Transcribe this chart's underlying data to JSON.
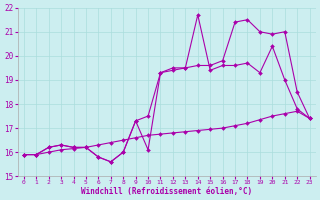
{
  "xlabel": "Windchill (Refroidissement éolien,°C)",
  "bg_color": "#cceef0",
  "line_color": "#aa00aa",
  "grid_color": "#aadddd",
  "xlim": [
    -0.5,
    23.5
  ],
  "ylim": [
    15,
    22
  ],
  "yticks": [
    15,
    16,
    17,
    18,
    19,
    20,
    21,
    22
  ],
  "xticks": [
    0,
    1,
    2,
    3,
    4,
    5,
    6,
    7,
    8,
    9,
    10,
    11,
    12,
    13,
    14,
    15,
    16,
    17,
    18,
    19,
    20,
    21,
    22,
    23
  ],
  "series": [
    {
      "x": [
        0,
        1,
        2,
        3,
        4,
        5,
        6,
        7,
        8,
        9,
        10,
        11,
        12,
        13,
        14,
        15,
        16,
        17,
        18,
        19,
        20,
        21,
        22,
        23
      ],
      "y": [
        15.9,
        15.9,
        16.2,
        16.3,
        16.2,
        16.2,
        15.8,
        15.6,
        16.0,
        17.3,
        16.1,
        19.3,
        19.4,
        19.5,
        21.7,
        19.4,
        19.6,
        19.6,
        19.7,
        19.3,
        20.4,
        19.0,
        17.8,
        17.4
      ]
    },
    {
      "x": [
        0,
        1,
        2,
        3,
        4,
        5,
        6,
        7,
        8,
        9,
        10,
        11,
        12,
        13,
        14,
        15,
        16,
        17,
        18,
        19,
        20,
        21,
        22,
        23
      ],
      "y": [
        15.9,
        15.9,
        16.2,
        16.3,
        16.2,
        16.2,
        15.8,
        15.6,
        16.0,
        17.3,
        17.5,
        19.3,
        19.5,
        19.5,
        19.6,
        19.6,
        19.8,
        21.4,
        21.5,
        21.0,
        20.9,
        21.0,
        18.5,
        17.4
      ]
    },
    {
      "x": [
        0,
        1,
        2,
        3,
        4,
        5,
        6,
        7,
        8,
        9,
        10,
        11,
        12,
        13,
        14,
        15,
        16,
        17,
        18,
        19,
        20,
        21,
        22,
        23
      ],
      "y": [
        15.9,
        15.9,
        16.0,
        16.1,
        16.15,
        16.2,
        16.3,
        16.4,
        16.5,
        16.6,
        16.7,
        16.75,
        16.8,
        16.85,
        16.9,
        16.95,
        17.0,
        17.1,
        17.2,
        17.35,
        17.5,
        17.6,
        17.7,
        17.4
      ]
    }
  ]
}
